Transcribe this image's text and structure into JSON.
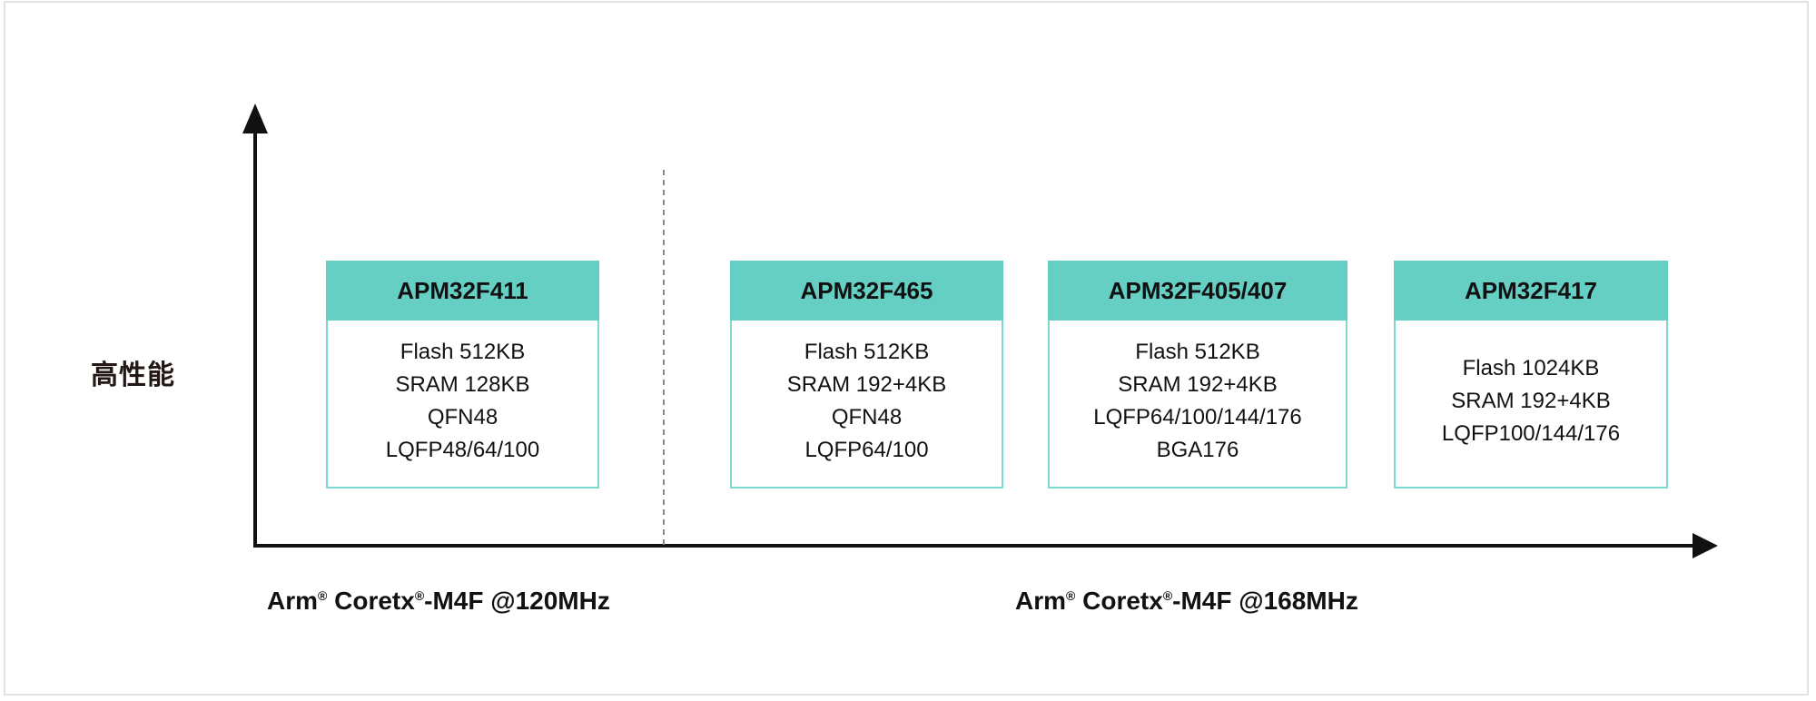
{
  "y_axis_label": "高性能",
  "accent_color": "#66cfc4",
  "groups": [
    {
      "core": "Arm",
      "core2": "Coretx",
      "suffix": "-M4F @120MHz",
      "reg": "®"
    },
    {
      "core": "Arm",
      "core2": "Coretx",
      "suffix": "-M4F @168MHz",
      "reg": "®"
    }
  ],
  "products": [
    {
      "name": "APM32F411",
      "specs": [
        "Flash 512KB",
        "SRAM 128KB",
        "QFN48",
        "LQFP48/64/100"
      ]
    },
    {
      "name": "APM32F465",
      "specs": [
        "Flash 512KB",
        "SRAM 192+4KB",
        "QFN48",
        "LQFP64/100"
      ]
    },
    {
      "name": "APM32F405/407",
      "specs": [
        "Flash 512KB",
        "SRAM 192+4KB",
        "LQFP64/100/144/176",
        "BGA176"
      ]
    },
    {
      "name": "APM32F417",
      "specs": [
        "Flash 1024KB",
        "SRAM 192+4KB",
        "LQFP100/144/176"
      ]
    }
  ]
}
